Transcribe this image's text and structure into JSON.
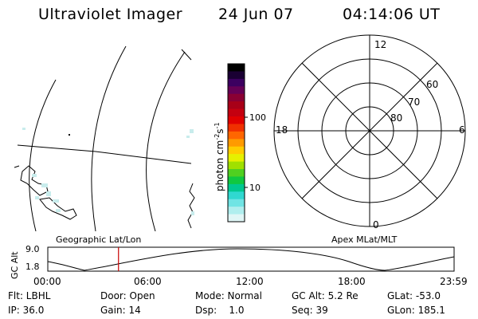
{
  "header": {
    "title": "Ultraviolet Imager",
    "date": "24 Jun 07",
    "time": "04:14:06 UT"
  },
  "colorbar": {
    "unit_prefix": "photon cm",
    "unit_exp1": "-2",
    "unit_mid": "s",
    "unit_exp2": "-1",
    "ticks": [
      "100",
      "10"
    ],
    "colors": [
      "#000000",
      "#1a0033",
      "#3c0060",
      "#660055",
      "#8a0033",
      "#a80018",
      "#c40010",
      "#e00000",
      "#f03000",
      "#ff6600",
      "#ff9a00",
      "#ffcc00",
      "#e6f000",
      "#a0e000",
      "#50d020",
      "#10c840",
      "#00c890",
      "#30d8d0",
      "#70e4e4",
      "#b0eeee",
      "#e0f6f6"
    ]
  },
  "polar": {
    "mlt_labels": {
      "top": "12",
      "bottom": "0",
      "left": "18",
      "right": "6"
    },
    "lat_labels": [
      "60",
      "70",
      "80"
    ]
  },
  "orbit": {
    "left_label": "Geographic Lat/Lon",
    "right_label": "Apex MLat/MLT",
    "y_axis_label": "GC Alt",
    "y_ticks": [
      "9.0",
      "1.8"
    ],
    "x_ticks": [
      "00:00",
      "06:00",
      "12:00",
      "18:00",
      "23:59"
    ],
    "current_time_fraction": 0.174
  },
  "info": {
    "filter": "Flt: LBHL",
    "door": "Door: Open",
    "mode": "Mode: Normal",
    "gc_alt": "GC Alt: 5.2 Re",
    "glat": "GLat: -53.0",
    "ip": "IP: 36.0",
    "gain": "Gain: 14",
    "dsp": "Dsp:    1.0",
    "seq": "Seq: 39",
    "glon": "GLon: 185.1"
  }
}
